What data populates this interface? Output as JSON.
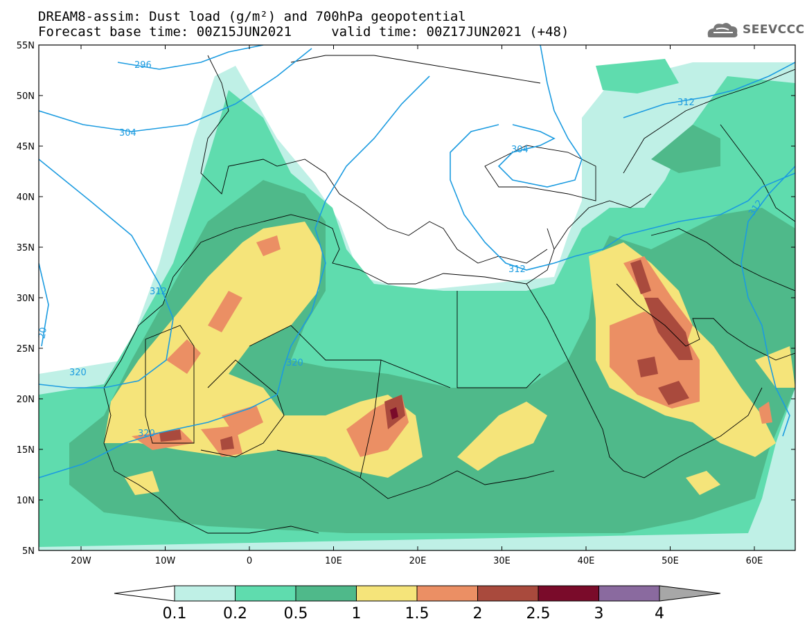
{
  "header": {
    "title_line1": "DREAM8-assim: Dust load (g/m²) and 700hPa geopotential",
    "title_line2": "Forecast base time: 00Z15JUN2021     valid time: 00Z17JUN2021 (+48)",
    "logo_text": "SEEVCCC"
  },
  "axes": {
    "lat_labels": [
      "55N",
      "50N",
      "45N",
      "40N",
      "35N",
      "30N",
      "25N",
      "20N",
      "15N",
      "10N",
      "5N"
    ],
    "lon_labels": [
      "20W",
      "10W",
      "0",
      "10E",
      "20E",
      "30E",
      "40E",
      "50E",
      "60E"
    ]
  },
  "contour_labels": [
    "296",
    "304",
    "312",
    "320",
    "320",
    "320",
    "304",
    "312",
    "312",
    "20"
  ],
  "colorbar": {
    "labels": [
      "0.1",
      "0.2",
      "0.5",
      "1",
      "1.5",
      "2",
      "2.5",
      "3",
      "4"
    ],
    "colors": [
      "#bff0e6",
      "#5fdcae",
      "#4fb98a",
      "#f5e47a",
      "#eb8f64",
      "#a94a3d",
      "#7a0b2a",
      "#8a6a9f",
      "#a7a7a7"
    ]
  },
  "colors": {
    "dust_0_1": "#bff0e6",
    "dust_0_2": "#5fdcae",
    "dust_0_5": "#4fb98a",
    "dust_1": "#f5e47a",
    "dust_1_5": "#eb8f64",
    "dust_2": "#a94a3d",
    "dust_2_5": "#7a0b2a",
    "geopotential": "#1b9be0"
  }
}
